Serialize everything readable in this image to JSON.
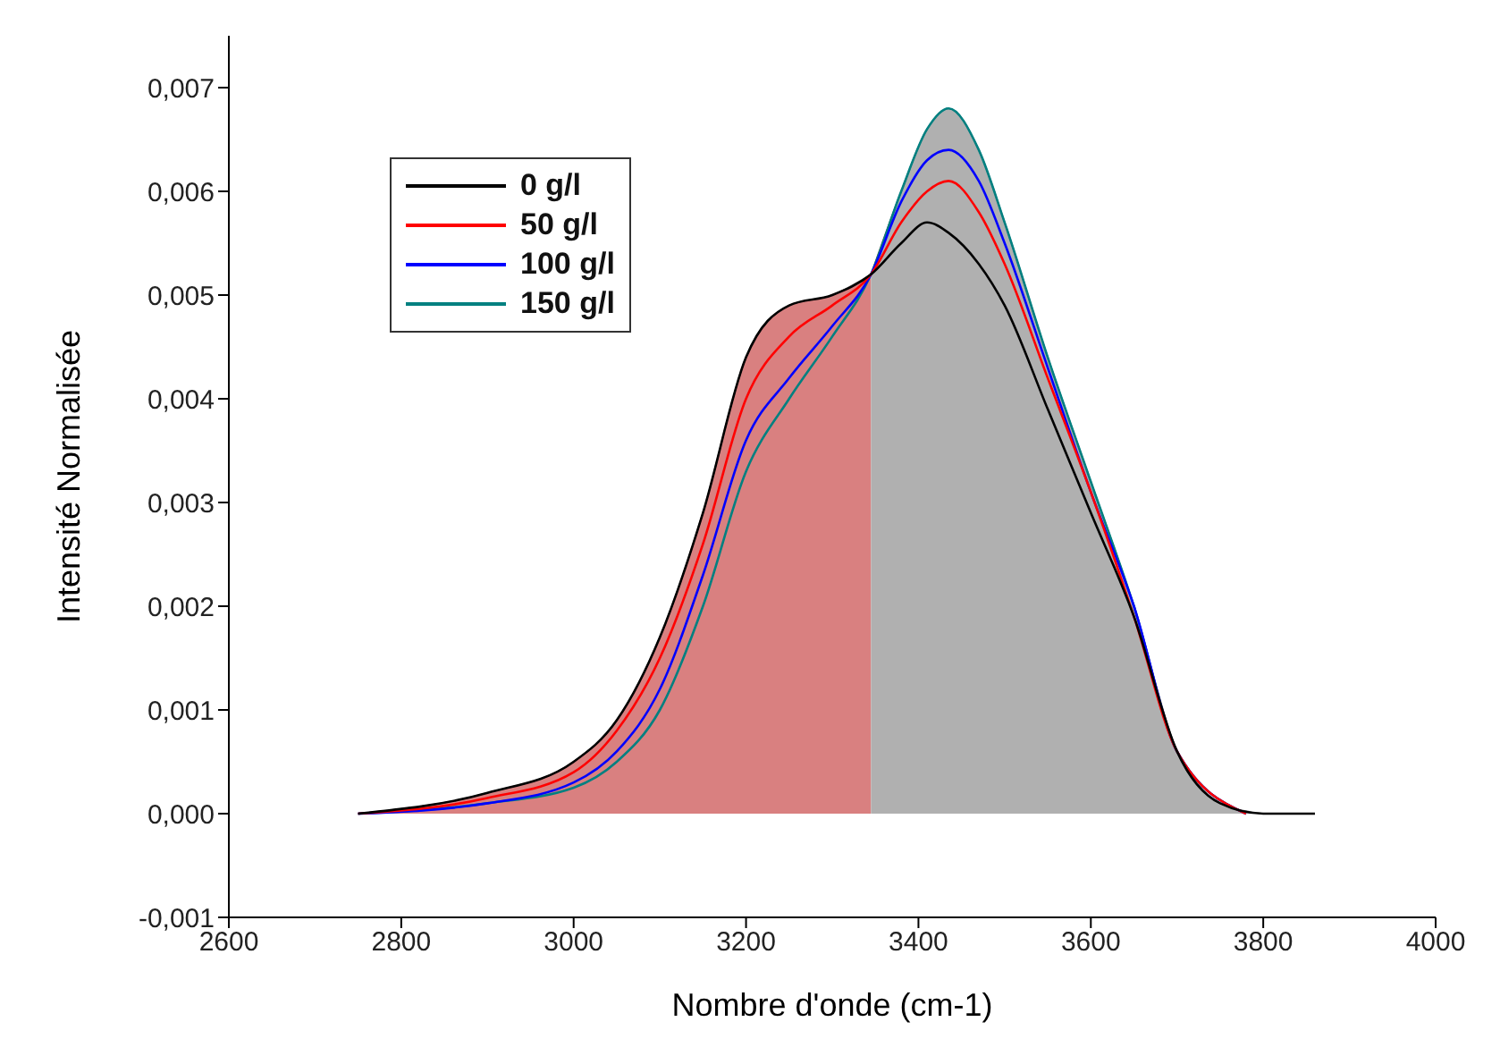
{
  "chart_data": {
    "type": "line",
    "xlabel": "Nombre d'onde (cm-1)",
    "ylabel": "Intensité Normalisée",
    "x": [
      2750,
      2900,
      3000,
      3050,
      3100,
      3150,
      3200,
      3250,
      3300,
      3345,
      3380,
      3410,
      3435,
      3470,
      3500,
      3550,
      3600,
      3650,
      3700,
      3780
    ],
    "series": [
      {
        "type": "area",
        "color": "#d98080",
        "x": [
          2750,
          2900,
          3000,
          3050,
          3100,
          3150,
          3200,
          3250,
          3300,
          3345
        ],
        "values": [
          0,
          0.0002,
          0.0005,
          0.0009,
          0.0017,
          0.0029,
          0.0044,
          0.0049,
          0.005,
          0.0052
        ]
      },
      {
        "type": "area",
        "color": "#b0b0b0",
        "x": [
          3345,
          3380,
          3410,
          3435,
          3470,
          3500,
          3550,
          3600,
          3650,
          3700,
          3750,
          3800
        ],
        "values": [
          0.0052,
          0.006,
          0.0066,
          0.0068,
          0.0064,
          0.0057,
          0.0044,
          0.0032,
          0.002,
          0.0006,
          0.0001,
          0
        ]
      },
      {
        "name": "0 g/l",
        "color": "#000000",
        "x": [
          2750,
          2900,
          3000,
          3050,
          3100,
          3150,
          3200,
          3250,
          3300,
          3345,
          3380,
          3410,
          3435,
          3470,
          3500,
          3550,
          3600,
          3650,
          3700,
          3750,
          3800,
          3860
        ],
        "values": [
          0,
          0.0002,
          0.0005,
          0.0009,
          0.0017,
          0.0029,
          0.0044,
          0.0049,
          0.005,
          0.0052,
          0.0055,
          0.0057,
          0.0056,
          0.0053,
          0.0049,
          0.0039,
          0.0029,
          0.0019,
          0.0006,
          0.0001,
          0,
          0
        ]
      },
      {
        "name": "50 g/l",
        "color": "#ff0000",
        "values": [
          0,
          0.00015,
          0.0004,
          0.0008,
          0.0015,
          0.0026,
          0.004,
          0.0046,
          0.0049,
          0.0052,
          0.0057,
          0.006,
          0.0061,
          0.0058,
          0.0053,
          0.0042,
          0.0031,
          0.0019,
          0.0006,
          0
        ]
      },
      {
        "name": "100 g/l",
        "color": "#0000ff",
        "values": [
          0,
          0.0001,
          0.0003,
          0.0006,
          0.0012,
          0.0023,
          0.0036,
          0.0042,
          0.0047,
          0.0052,
          0.0059,
          0.0063,
          0.0064,
          0.0061,
          0.0055,
          0.0043,
          0.0031,
          0.002,
          0.0006,
          0
        ]
      },
      {
        "name": "150 g/l",
        "color": "#008080",
        "values": [
          0,
          0.0001,
          0.00025,
          0.0005,
          0.001,
          0.002,
          0.0033,
          0.004,
          0.0046,
          0.0052,
          0.006,
          0.0066,
          0.0068,
          0.0064,
          0.0057,
          0.0044,
          0.0032,
          0.002,
          0.0006,
          0
        ]
      }
    ],
    "xlim": [
      2600,
      4000
    ],
    "xticks": [
      2600,
      2800,
      3000,
      3200,
      3400,
      3600,
      3800,
      4000
    ],
    "ylim": [
      -0.001,
      0.0075
    ],
    "yticks": [
      {
        "value": -0.001,
        "label": "-0,001"
      },
      {
        "value": 0,
        "label": "0,000"
      },
      {
        "value": 0.001,
        "label": "0,001"
      },
      {
        "value": 0.002,
        "label": "0,002"
      },
      {
        "value": 0.003,
        "label": "0,003"
      },
      {
        "value": 0.004,
        "label": "0,004"
      },
      {
        "value": 0.005,
        "label": "0,005"
      },
      {
        "value": 0.006,
        "label": "0,006"
      },
      {
        "value": 0.007,
        "label": "0,007"
      }
    ],
    "grid": false,
    "legend": "top left",
    "marker": "none",
    "line_style": "solid"
  }
}
